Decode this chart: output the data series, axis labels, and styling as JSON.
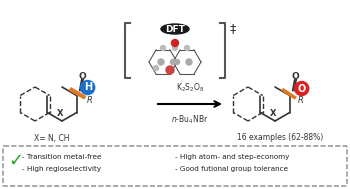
{
  "bg_color": "#ffffff",
  "box_color": "#888888",
  "dft_label": "DFT",
  "dft_bg": "#1a1a1a",
  "dft_text_color": "#ffffff",
  "ddagger": "‡",
  "arrow_color": "#000000",
  "reagent1": "K$_2$S$_2$O$_8$",
  "reagent2": "$n$-Bu$_4$NBr",
  "product_label": "16 examples (62-88%)",
  "xvar": "X= N, CH",
  "check_color": "#22aa22",
  "bullet1a": "- Transition metal-free",
  "bullet2a": "- High regioselectivity",
  "bullet1b": "- High atom- and step-economy",
  "bullet2b": "- Good futional group tolerance",
  "orange_color": "#e07820",
  "red_color": "#dd2222",
  "blue_color": "#1a6fcc",
  "h_label": "H",
  "o_label": "O",
  "bracket_color": "#555555",
  "dashed_box_color": "#888888",
  "reactant_x_label": "X",
  "product_x_label": "X",
  "r_label": "R"
}
